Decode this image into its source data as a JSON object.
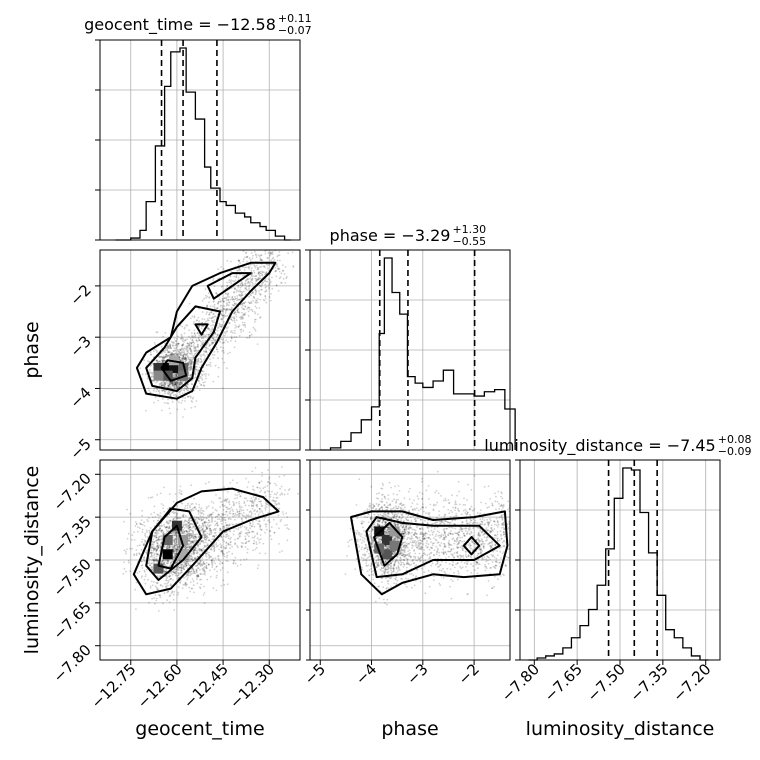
{
  "chart_data": {
    "type": "corner",
    "parameters": [
      "geocent_time",
      "phase",
      "luminosity_distance"
    ],
    "grid": true,
    "quantiles": [
      0.16,
      0.5,
      0.84
    ],
    "marginals": [
      {
        "param": "geocent_time",
        "median": -12.58,
        "plus": 0.11,
        "minus": 0.07,
        "title_prefix": "geocent_time = −12.58",
        "title_sup": "+0.11",
        "title_sub": "−0.07",
        "range": [
          -12.85,
          -12.2
        ],
        "quantile_lines": [
          -12.65,
          -12.58,
          -12.47
        ],
        "bin_edges": [
          -12.8,
          -12.77,
          -12.75,
          -12.72,
          -12.7,
          -12.67,
          -12.64,
          -12.62,
          -12.59,
          -12.57,
          -12.54,
          -12.51,
          -12.49,
          -12.46,
          -12.44,
          -12.41,
          -12.38,
          -12.36,
          -12.33,
          -12.31,
          -12.28,
          -12.25,
          -12.23
        ],
        "counts": [
          0.0,
          0.0,
          0.01,
          0.05,
          0.2,
          0.49,
          0.8,
          0.98,
          1.0,
          0.77,
          0.63,
          0.38,
          0.27,
          0.2,
          0.18,
          0.14,
          0.12,
          0.09,
          0.07,
          0.05,
          0.02,
          0.0
        ],
        "xticks": [
          -12.75,
          -12.6,
          -12.45,
          -12.3
        ],
        "xtick_labels": [
          "−12.75",
          "−12.60",
          "−12.45",
          "−12.30"
        ],
        "xlabel": "geocent_time"
      },
      {
        "param": "phase",
        "median": -3.29,
        "plus": 1.3,
        "minus": 0.55,
        "title_prefix": "phase = −3.29",
        "title_sup": "+1.30",
        "title_sub": "−0.55",
        "range": [
          -5.2,
          -1.3
        ],
        "quantile_lines": [
          -3.84,
          -3.29,
          -1.99
        ],
        "bin_edges": [
          -5.0,
          -4.8,
          -4.6,
          -4.4,
          -4.2,
          -4.0,
          -3.85,
          -3.75,
          -3.6,
          -3.45,
          -3.3,
          -3.15,
          -3.0,
          -2.8,
          -2.6,
          -2.4,
          -2.2,
          -2.0,
          -1.8,
          -1.6,
          -1.4,
          -1.2
        ],
        "counts": [
          0.0,
          0.01,
          0.04,
          0.08,
          0.14,
          0.2,
          0.54,
          0.89,
          0.73,
          0.63,
          0.34,
          0.31,
          0.29,
          0.32,
          0.37,
          0.26,
          0.26,
          0.25,
          0.27,
          0.28,
          0.19
        ],
        "xticks": [
          -5,
          -4,
          -3,
          -2
        ],
        "xtick_labels": [
          "−5",
          "−4",
          "−3",
          "−2"
        ],
        "xlabel": "phase"
      },
      {
        "param": "luminosity_distance",
        "median": -7.45,
        "plus": 0.08,
        "minus": 0.09,
        "title_prefix": "luminosity_distance = −7.45",
        "title_sup": "+0.08",
        "title_sub": "−0.09",
        "range": [
          -7.85,
          -7.15
        ],
        "quantile_lines": [
          -7.54,
          -7.45,
          -7.37
        ],
        "bin_edges": [
          -7.82,
          -7.79,
          -7.76,
          -7.73,
          -7.7,
          -7.67,
          -7.64,
          -7.61,
          -7.58,
          -7.55,
          -7.52,
          -7.49,
          -7.46,
          -7.43,
          -7.4,
          -7.37,
          -7.34,
          -7.31,
          -7.28,
          -7.25,
          -7.22,
          -7.19
        ],
        "counts": [
          0.0,
          0.01,
          0.02,
          0.03,
          0.06,
          0.11,
          0.17,
          0.25,
          0.37,
          0.55,
          0.8,
          0.95,
          0.94,
          0.73,
          0.53,
          0.32,
          0.15,
          0.11,
          0.06,
          0.02,
          0.0
        ],
        "xticks": [
          -7.8,
          -7.65,
          -7.5,
          -7.35,
          -7.2
        ],
        "xtick_labels": [
          "−7.80",
          "−7.65",
          "−7.50",
          "−7.35",
          "−7.20"
        ],
        "xlabel": "luminosity_distance"
      }
    ],
    "y_axes": {
      "phase": {
        "label": "phase",
        "ticks": [
          -2,
          -3,
          -4,
          -5
        ],
        "tick_labels": [
          "−2",
          "−3",
          "−4",
          "−5"
        ]
      },
      "luminosity_distance": {
        "label": "luminosity_distance",
        "ticks": [
          -7.2,
          -7.35,
          -7.5,
          -7.65,
          -7.8
        ],
        "tick_labels": [
          "−7.20",
          "−7.35",
          "−7.50",
          "−7.65",
          "−7.80"
        ]
      }
    },
    "joint_panels": [
      {
        "x": "geocent_time",
        "y": "phase",
        "samples_n": 2600,
        "density_peak": [
          -12.61,
          -3.65
        ],
        "contour_levels": 3
      },
      {
        "x": "geocent_time",
        "y": "luminosity_distance",
        "samples_n": 2600,
        "density_peak": [
          -12.62,
          -7.44
        ],
        "contour_levels": 3
      },
      {
        "x": "phase",
        "y": "luminosity_distance",
        "samples_n": 2600,
        "density_peak": [
          -3.75,
          -7.42
        ],
        "contour_levels": 3
      }
    ]
  }
}
